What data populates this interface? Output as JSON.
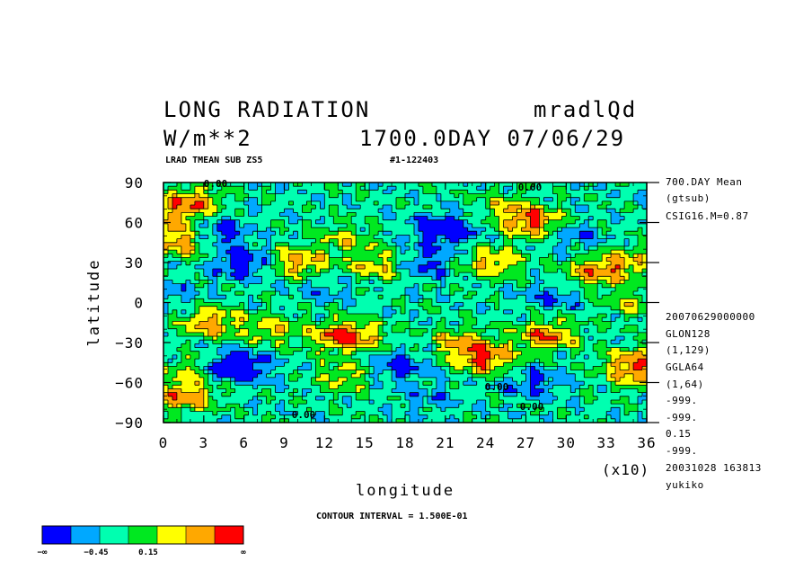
{
  "header": {
    "title": "LONG RADIATION",
    "run_name": "mradlQd",
    "units": "W/m**2",
    "time": "1700.0DAY 07/06/29",
    "subtitle": "LRAD TMEAN SUB ZS5",
    "file_id": "#1-122403"
  },
  "side_info": {
    "top": [
      "700.DAY Mean",
      "(gtsub)",
      "CSIG16.M=0.87"
    ],
    "bottom": [
      "20070629000000",
      "GLON128",
      "(1,129)",
      "GGLA64",
      "(1,64)",
      "-999.",
      "-999.",
      "0.15",
      "-999.",
      "20031028 163813",
      "yukiko"
    ]
  },
  "chart_data": {
    "type": "heatmap",
    "title": "LONG RADIATION",
    "xlabel": "longitude",
    "ylabel": "latitude",
    "x_multiplier_label": "(x10)",
    "xlim": [
      0,
      36
    ],
    "ylim": [
      -90,
      90
    ],
    "x_ticks": [
      "0",
      "3",
      "6",
      "9",
      "12",
      "15",
      "18",
      "21",
      "24",
      "27",
      "30",
      "33",
      "36"
    ],
    "y_ticks": [
      "90",
      "60",
      "30",
      "0",
      "−30",
      "−60",
      "−90"
    ],
    "contour_interval_label": "CONTOUR INTERVAL = 1.500E-01",
    "contour_labels": [
      "0.00",
      "0.00",
      "0.00",
      "0.00",
      "0.00"
    ],
    "colorbar": {
      "colors": [
        "#0000ff",
        "#00a8ff",
        "#00ffb0",
        "#00e820",
        "#ffff00",
        "#ffa800",
        "#ff0000"
      ],
      "labels": [
        "−∞",
        "−0.45",
        "0.15",
        "∞"
      ]
    },
    "features": [
      {
        "lon": 2,
        "lat": 75,
        "value": 1.0
      },
      {
        "lon": 0.5,
        "lat": 60,
        "value": 0.6
      },
      {
        "lon": 1.5,
        "lat": 45,
        "value": 0.9
      },
      {
        "lon": 4,
        "lat": 52,
        "value": -0.7
      },
      {
        "lon": 6,
        "lat": 30,
        "value": -0.8
      },
      {
        "lon": 10,
        "lat": 30,
        "value": 0.9
      },
      {
        "lon": 13.5,
        "lat": 48,
        "value": 0.5
      },
      {
        "lon": 16,
        "lat": 28,
        "value": 0.7
      },
      {
        "lon": 21,
        "lat": 55,
        "value": -0.9
      },
      {
        "lon": 19.5,
        "lat": 30,
        "value": -0.6
      },
      {
        "lon": 25.5,
        "lat": 72,
        "value": 0.5
      },
      {
        "lon": 27.5,
        "lat": 60,
        "value": 1.1
      },
      {
        "lon": 24.5,
        "lat": 30,
        "value": 0.8
      },
      {
        "lon": 32,
        "lat": 22,
        "value": 0.8
      },
      {
        "lon": 34.5,
        "lat": 30,
        "value": 0.7
      },
      {
        "lon": 30.5,
        "lat": 50,
        "value": -0.4
      },
      {
        "lon": 35,
        "lat": 0,
        "value": 0.5
      },
      {
        "lon": 3.5,
        "lat": -15,
        "value": 0.9
      },
      {
        "lon": 8,
        "lat": -20,
        "value": 0.6
      },
      {
        "lon": 13,
        "lat": -25,
        "value": 0.8
      },
      {
        "lon": 14.5,
        "lat": -25,
        "value": 0.6
      },
      {
        "lon": 5.5,
        "lat": -48,
        "value": -1.1
      },
      {
        "lon": 13.5,
        "lat": -55,
        "value": 0.6
      },
      {
        "lon": 17.5,
        "lat": -48,
        "value": -0.6
      },
      {
        "lon": 24,
        "lat": -42,
        "value": 1.1
      },
      {
        "lon": 28.5,
        "lat": -25,
        "value": 1.0
      },
      {
        "lon": 22,
        "lat": -30,
        "value": 0.7
      },
      {
        "lon": 27.5,
        "lat": -60,
        "value": -0.5
      },
      {
        "lon": 35,
        "lat": -45,
        "value": 0.8
      },
      {
        "lon": 35.5,
        "lat": -55,
        "value": 0.6
      },
      {
        "lon": 1.5,
        "lat": -70,
        "value": 1.0
      },
      {
        "lon": 2,
        "lat": -50,
        "value": 0.5
      },
      {
        "lon": 20,
        "lat": -72,
        "value": -0.3
      },
      {
        "lon": 12,
        "lat": 10,
        "value": -0.3
      },
      {
        "lon": 29,
        "lat": 5,
        "value": -0.4
      },
      {
        "lon": 0.5,
        "lat": 5,
        "value": -0.3
      }
    ]
  }
}
